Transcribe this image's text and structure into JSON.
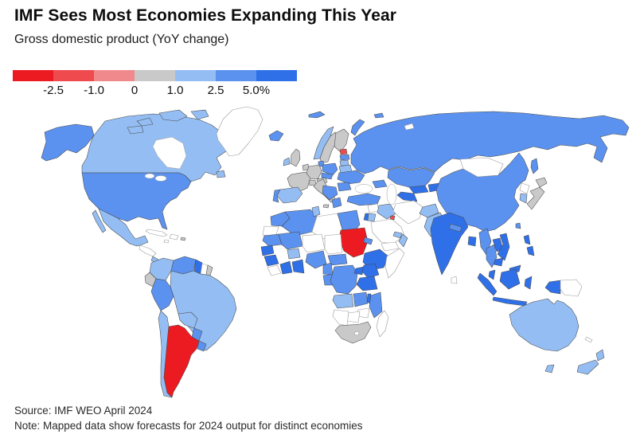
{
  "header": {
    "title": "IMF Sees Most Economies Expanding This Year",
    "subtitle": "Gross domestic product (YoY change)"
  },
  "legend": {
    "tick_labels": [
      "-2.5",
      "-1.0",
      "0",
      "1.0",
      "2.5",
      "5.0%"
    ],
    "swatches": [
      {
        "bin": "r3",
        "range": "less than -2.5",
        "color": "#ec1b21"
      },
      {
        "bin": "r2",
        "range": "-2.5 to -1.0",
        "color": "#ef4a4e"
      },
      {
        "bin": "r1",
        "range": "-1.0 to 0",
        "color": "#f0898b"
      },
      {
        "bin": "g",
        "range": "0 to 1.0",
        "color": "#c9c9c9"
      },
      {
        "bin": "b1",
        "range": "1.0 to 2.5",
        "color": "#94bef3"
      },
      {
        "bin": "b2",
        "range": "2.5 to 5.0",
        "color": "#5b92ef"
      },
      {
        "bin": "b3",
        "range": "more than 5.0",
        "color": "#2f70e8"
      }
    ],
    "no_data_color": "#ffffff"
  },
  "footer": {
    "source": "Source: IMF WEO April 2024",
    "note": "Note: Mapped data show forecasts for 2024 output for distinct economies"
  },
  "chart_data": {
    "type": "heatmap",
    "subtype": "choropleth_world_map",
    "title": "IMF Sees Most Economies Expanding This Year",
    "subtitle": "Gross domestic product (YoY change)",
    "unit": "percent YoY GDP change, 2024 IMF forecast",
    "scale_breaks_percent": [
      -2.5,
      -1.0,
      0,
      1.0,
      2.5,
      5.0
    ],
    "legend_position": "top-left",
    "bins": {
      "r3": "less than -2.5",
      "r2": "-2.5 to -1.0",
      "r1": "-1.0 to 0",
      "g": "0 to 1.0",
      "b1": "1.0 to 2.5",
      "b2": "2.5 to 5.0",
      "b3": "more than 5.0",
      "nd": "no data (white)"
    },
    "countries": {
      "united-states": "b2",
      "canada": "b1",
      "greenland": "nd",
      "mexico": "b1",
      "guatemala-honduras": "nd",
      "nicaragua-costa-rica": "b1",
      "panama": "b2",
      "cuba": "nd",
      "hispaniola": "nd",
      "jamaica": "nd",
      "puerto-rico": "g",
      "colombia": "b1",
      "venezuela": "b2",
      "guyana": "b3",
      "suriname": "nd",
      "french-guiana": "g",
      "ecuador": "g",
      "peru": "b2",
      "brazil": "b1",
      "bolivia": "b1",
      "paraguay": "b2",
      "chile": "b1",
      "argentina": "r3",
      "uruguay": "b2",
      "iceland": "b2",
      "svalbard": "b2",
      "norway": "b1",
      "sweden": "g",
      "finland": "g",
      "estonia": "r2",
      "latvia": "b2",
      "lithuania": "b1",
      "denmark": "b2",
      "united-kingdom": "g",
      "ireland": "b1",
      "netherlands-belgium": "g",
      "germany": "g",
      "poland": "b2",
      "belarus": "b1",
      "ukraine": "b2",
      "france": "g",
      "switzerland": "g",
      "austria": "g",
      "czechia-slovakia": "b2",
      "spain": "b1",
      "portugal": "b2",
      "italy": "g",
      "romania": "b2",
      "balkans": "b2",
      "greece": "b2",
      "russia": "b2",
      "severnaya-zemlya": "nd",
      "kazakhstan": "b2",
      "uzbekistan": "b3",
      "turkmenistan": "b3",
      "kyrgyzstan-tajikistan": "b3",
      "caucasus": "b2",
      "turkey": "b2",
      "syria": "nd",
      "iraq": "b1",
      "israel": "b3",
      "jordan": "b1",
      "saudi-arabia": "nd",
      "kuwait": "r2",
      "yemen": "nd",
      "oman": "b1",
      "uae-qatar": "b1",
      "iran": "nd",
      "afghanistan": "b1",
      "pakistan": "b1",
      "india": "b3",
      "nepal": "b2",
      "bangladesh": "b3",
      "sri-lanka": "nd",
      "myanmar": "b2",
      "thailand": "b2",
      "laos": "b3",
      "vietnam": "b3",
      "cambodia": "b3",
      "malaysia": "b3",
      "china": "b2",
      "mongolia": "nd",
      "taiwan": "b2",
      "north-korea": "nd",
      "south-korea": "b1",
      "japan": "g",
      "philippines": "b3",
      "indonesia": "b3",
      "papua-new-guinea": "nd",
      "new-caledonia": "nd",
      "morocco": "b2",
      "western-sahara": "nd",
      "algeria": "b2",
      "tunisia": "b1",
      "libya": "nd",
      "egypt": "b2",
      "sudan": "r3",
      "eritrea": "b2",
      "ethiopia": "b3",
      "somalia": "nd",
      "mauritania": "b2",
      "senegal": "b3",
      "guinea": "b3",
      "sierra-leone-liberia": "nd",
      "mali": "b2",
      "burkina-faso": "b1",
      "ivory-coast": "b3",
      "ghana-togo-benin": "b3",
      "niger": "nd",
      "nigeria": "b2",
      "chad": "nd",
      "central-african-republic": "b2",
      "cameroon": "b2",
      "gabon-congo": "b2",
      "dr-congo": "b2",
      "uganda": "b3",
      "kenya": "b3",
      "tanzania": "b3",
      "angola": "b1",
      "zambia": "b2",
      "malawi": "b3",
      "mozambique": "b2",
      "zimbabwe": "nd",
      "botswana": "nd",
      "namibia": "nd",
      "south-africa": "g",
      "lesotho": "nd",
      "madagascar": "nd",
      "australia": "b1",
      "new-zealand": "b1"
    }
  }
}
